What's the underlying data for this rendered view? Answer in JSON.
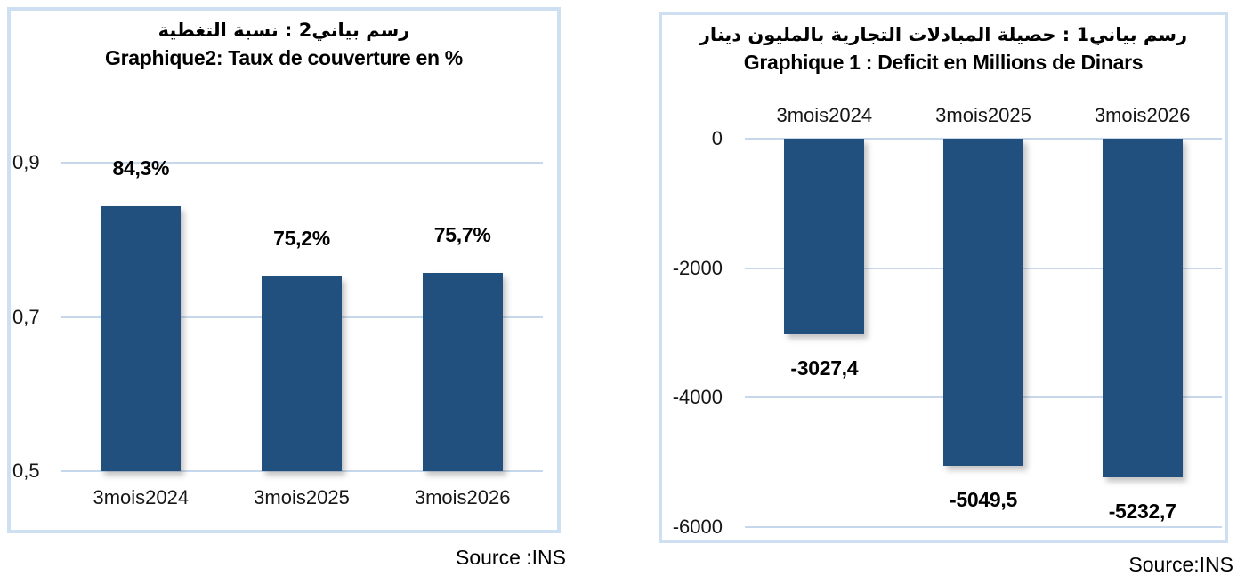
{
  "colors": {
    "bar": "#21507E",
    "gridline": "#c7d8ec",
    "panel_border": "#cfdff2",
    "text": "#111111"
  },
  "chart_data": [
    {
      "id": "taux-de-couverture",
      "type": "bar",
      "title_ar": "رسم بياني2 :  نسبة التغطية",
      "title_fr": "Graphique2: Taux de couverture en %",
      "categories": [
        "3mois2024",
        "3mois2025",
        "3mois2026"
      ],
      "values": [
        0.843,
        0.752,
        0.757
      ],
      "value_labels": [
        "84,3%",
        "75,2%",
        "75,7%"
      ],
      "y_ticks": [
        {
          "v": 0.9,
          "label": "0,9"
        },
        {
          "v": 0.7,
          "label": "0,7"
        },
        {
          "v": 0.5,
          "label": "0,5"
        }
      ],
      "ylim": [
        0.5,
        0.9
      ],
      "base": 0.5,
      "grid": true,
      "legend": false,
      "source": "Source :INS"
    },
    {
      "id": "deficit",
      "type": "bar",
      "title_ar": "رسم بياني1 :  حصيلة المبادلات التجارية بالمليون دينار",
      "title_fr": "Graphique 1 : Deficit en Millions de Dinars",
      "categories": [
        "3mois2024",
        "3mois2025",
        "3mois2026"
      ],
      "values": [
        -3027.4,
        -5049.5,
        -5232.7
      ],
      "value_labels": [
        "-3027,4",
        "-5049,5",
        "-5232,7"
      ],
      "y_ticks": [
        {
          "v": 0,
          "label": "0"
        },
        {
          "v": -2000,
          "label": "-2000"
        },
        {
          "v": -4000,
          "label": "-4000"
        },
        {
          "v": -6000,
          "label": "-6000"
        }
      ],
      "ylim": [
        -6000,
        0
      ],
      "base": 0,
      "grid": true,
      "legend": false,
      "source": "Source:INS"
    }
  ]
}
